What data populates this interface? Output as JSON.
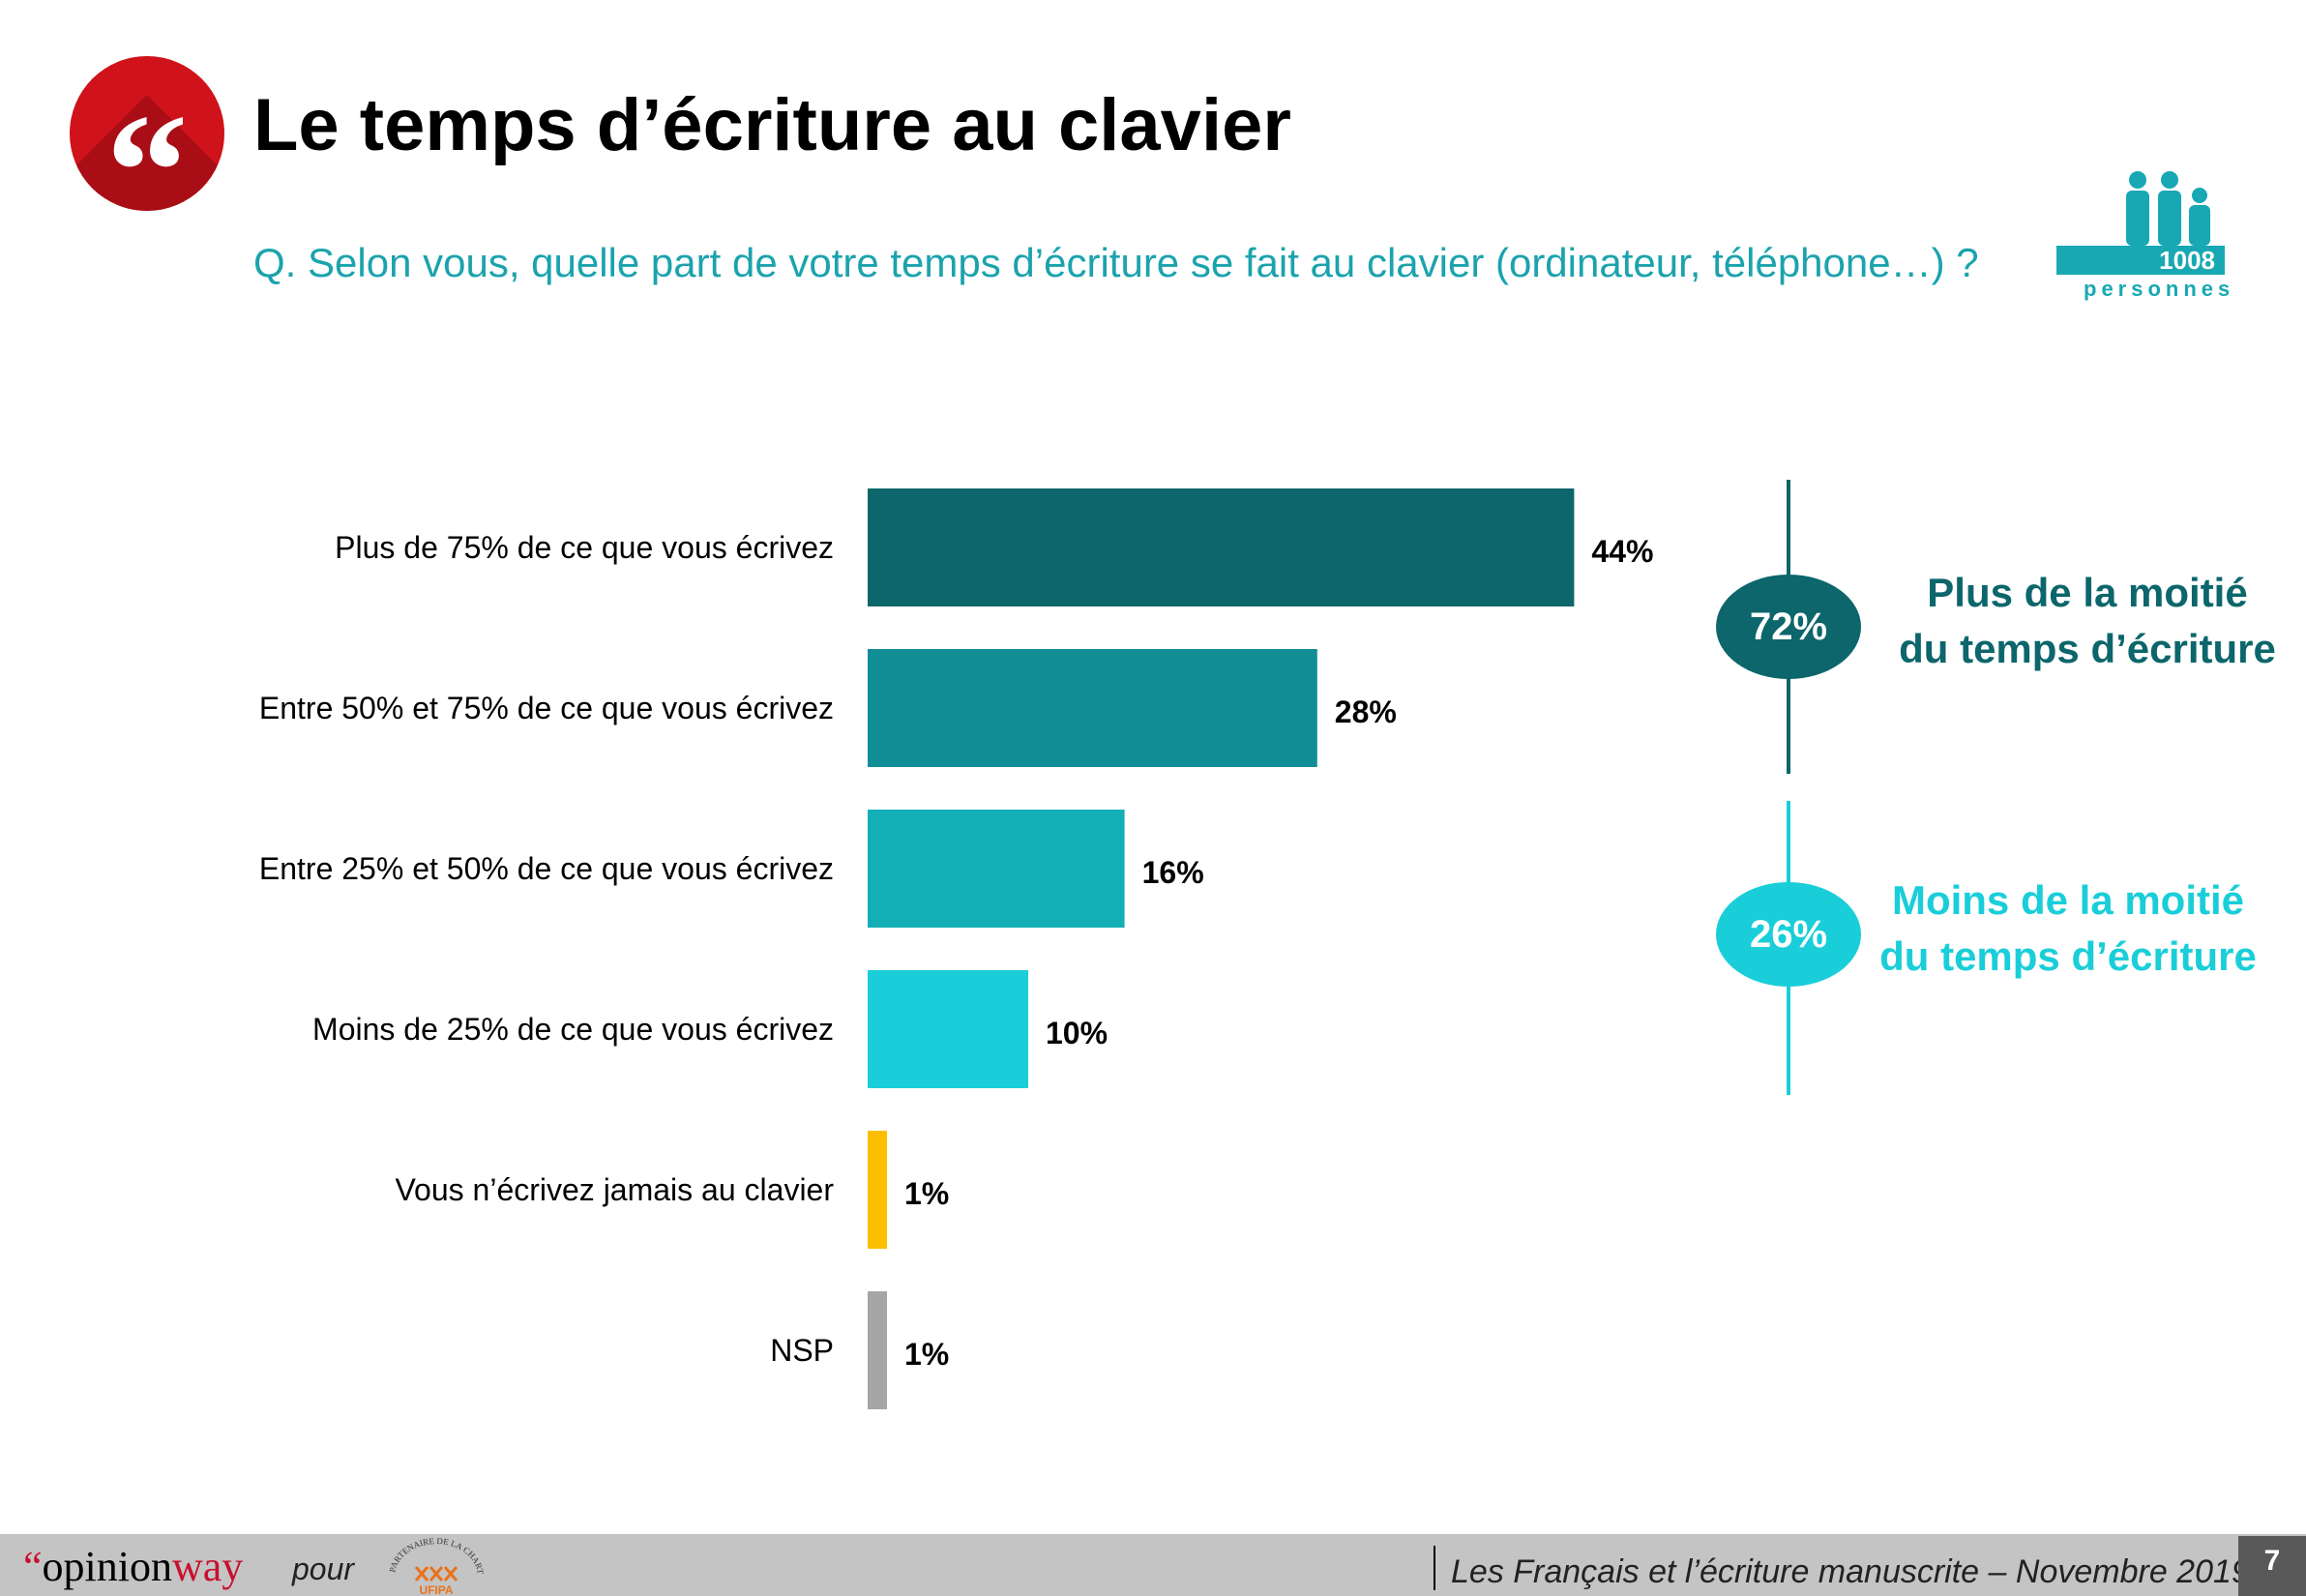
{
  "header": {
    "title": "Le temps d’écriture au clavier",
    "quote_mark": "“",
    "question": "Q. Selon vous, quelle part de votre temps d’écriture se fait au clavier (ordinateur, téléphone…) ?",
    "sample_count": "1008",
    "sample_label": "personnes",
    "sample_icon": "people-icon",
    "accent_color": "#d0121b"
  },
  "chart_data": {
    "type": "bar",
    "orientation": "horizontal",
    "categories": [
      "Plus de 75% de ce que vous écrivez",
      "Entre 50% et 75% de ce que vous écrivez",
      "Entre 25% et 50% de ce que vous écrivez",
      "Moins de 25% de ce que vous écrivez",
      "Vous n’écrivez jamais au clavier",
      "NSP"
    ],
    "values": [
      44,
      28,
      16,
      10,
      1,
      1
    ],
    "value_labels": [
      "44%",
      "28%",
      "16%",
      "10%",
      "1%",
      "1%"
    ],
    "colors": [
      "#0c666b",
      "#118e95",
      "#14aeb6",
      "#19ced9",
      "#fcbf00",
      "#a6a6a6"
    ],
    "xlim": [
      0,
      50
    ],
    "grid": false,
    "legend": "none"
  },
  "summary": [
    {
      "value": "72%",
      "text_line1": "Plus de la moitié",
      "text_line2": "du temps d’écriture",
      "color": "#0c666b"
    },
    {
      "value": "26%",
      "text_line1": "Moins de la moitié",
      "text_line2": "du temps d’écriture",
      "color": "#19ced9"
    }
  ],
  "footer": {
    "logo_quote": "“",
    "logo_part1": "opinion",
    "logo_part2": "way",
    "pour": "pour",
    "partner_logo_text": "PARTENAIRE DE LA CHARTE",
    "partner_logo_name": "UFIPA",
    "caption": "Les Français et l’écriture manuscrite – Novembre 2019",
    "page_number": "7"
  }
}
